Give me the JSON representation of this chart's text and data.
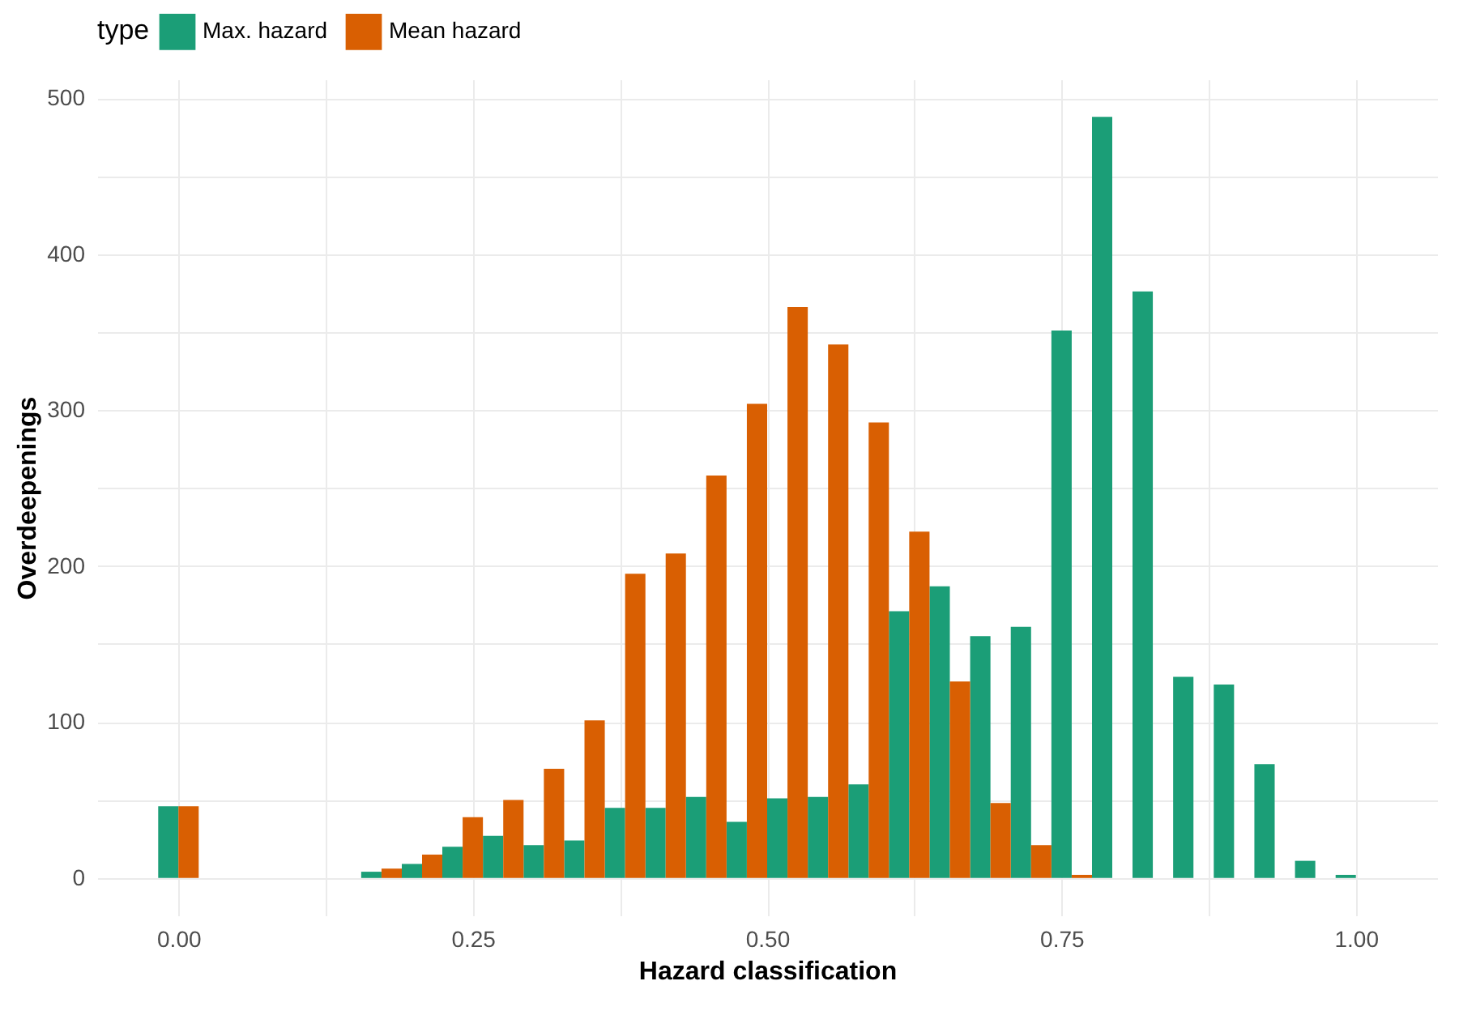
{
  "chart_data": {
    "type": "histogram",
    "xlabel": "Hazard classification",
    "ylabel": "Overdeepenings",
    "legend_title": "type",
    "legend": "top",
    "bins": [
      -0.0172,
      0.0172,
      0.0517,
      0.0862,
      0.1207,
      0.1552,
      0.1897,
      0.2241,
      0.2586,
      0.2931,
      0.3276,
      0.3621,
      0.3966,
      0.431,
      0.4655,
      0.5,
      0.5345,
      0.569,
      0.6034,
      0.6379,
      0.6724,
      0.7069,
      0.7414,
      0.7759,
      0.8103,
      0.8448,
      0.8793,
      0.9138,
      0.9483,
      0.9828,
      1.0172
    ],
    "series": [
      {
        "name": "Max. hazard",
        "color": "#1b9e77",
        "values": [
          46,
          0,
          0,
          0,
          0,
          4,
          9,
          20,
          27,
          21,
          24,
          45,
          45,
          52,
          36,
          51,
          52,
          60,
          171,
          187,
          155,
          161,
          351,
          488,
          376,
          129,
          124,
          73,
          11,
          2
        ]
      },
      {
        "name": "Mean hazard",
        "color": "#d95f02",
        "values": [
          46,
          0,
          0,
          0,
          0,
          6,
          15,
          39,
          50,
          70,
          101,
          195,
          208,
          258,
          304,
          366,
          342,
          292,
          222,
          126,
          48,
          21,
          2,
          0,
          0,
          0,
          0,
          0,
          0,
          0
        ]
      }
    ],
    "xlim": [
      -0.069,
      1.069
    ],
    "ylim": [
      -24,
      512
    ],
    "xticks": [
      {
        "value": 0,
        "label": "0.00"
      },
      {
        "value": 0.125,
        "label": null
      },
      {
        "value": 0.25,
        "label": "0.25"
      },
      {
        "value": 0.375,
        "label": null
      },
      {
        "value": 0.5,
        "label": "0.50"
      },
      {
        "value": 0.625,
        "label": null
      },
      {
        "value": 0.75,
        "label": "0.75"
      },
      {
        "value": 0.875,
        "label": null
      },
      {
        "value": 1,
        "label": "1.00"
      }
    ],
    "yticks": [
      0,
      {
        "value": 50,
        "label": null
      },
      100,
      {
        "value": 150,
        "label": null
      },
      200,
      {
        "value": 250,
        "label": null
      },
      300,
      {
        "value": 350,
        "label": null
      },
      400,
      {
        "value": 450,
        "label": null
      },
      500
    ],
    "grid": true
  }
}
